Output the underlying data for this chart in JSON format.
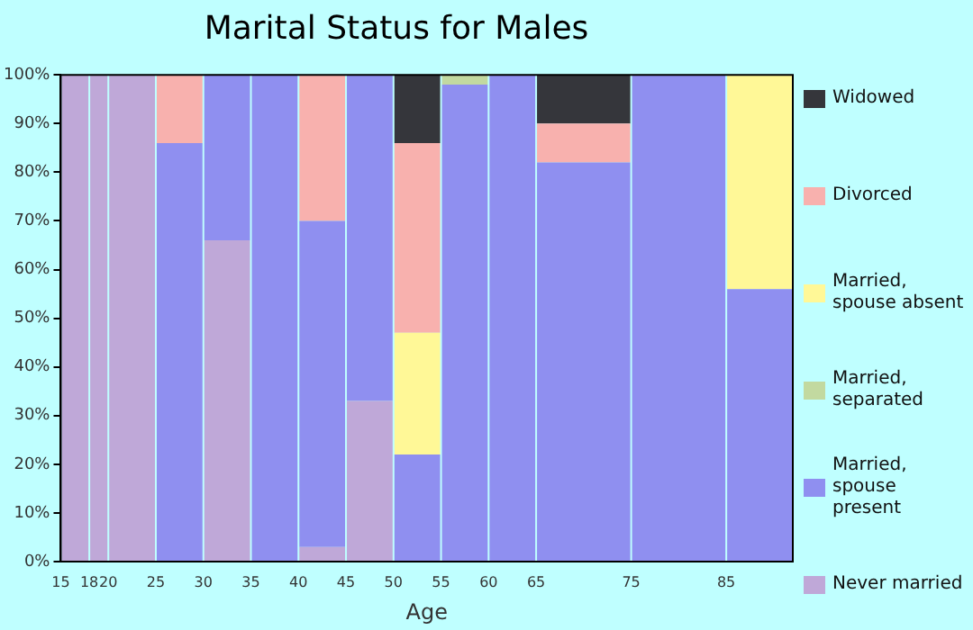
{
  "chart_data": {
    "type": "bar",
    "title": "Marital Status for Males",
    "xlabel": "Age",
    "stacked": true,
    "x": [
      16.5,
      19,
      22.5,
      27.5,
      32.5,
      37.5,
      42.5,
      47.5,
      52.5,
      57.5,
      62.5,
      70,
      80,
      88.5
    ],
    "xlim": [
      15,
      92
    ],
    "xticks": [
      15,
      18,
      20,
      25,
      30,
      35,
      40,
      45,
      50,
      55,
      60,
      65,
      75,
      85
    ],
    "ylim": [
      0,
      100
    ],
    "yticks": [
      {
        "value": 0,
        "label": "0%"
      },
      {
        "value": 10,
        "label": "10%"
      },
      {
        "value": 20,
        "label": "20%"
      },
      {
        "value": 30,
        "label": "30%"
      },
      {
        "value": 40,
        "label": "40%"
      },
      {
        "value": 50,
        "label": "50%"
      },
      {
        "value": 60,
        "label": "60%"
      },
      {
        "value": 70,
        "label": "70%"
      },
      {
        "value": 80,
        "label": "80%"
      },
      {
        "value": 90,
        "label": "90%"
      },
      {
        "value": 100,
        "label": "100%"
      }
    ],
    "grid": false,
    "legend": "right",
    "series": [
      {
        "name": "Never married",
        "color": "#bfa8d8",
        "values": [
          100,
          100,
          100,
          0,
          66,
          0,
          3,
          33,
          0,
          0,
          0,
          0,
          0,
          0
        ]
      },
      {
        "name": "Married, spouse present",
        "color": "#8f8ff0",
        "values": [
          0,
          0,
          0,
          86,
          34,
          100,
          67,
          67,
          22,
          98,
          100,
          82,
          100,
          56
        ]
      },
      {
        "name": "Married, separated",
        "color": "#c2d9a0",
        "values": [
          0,
          0,
          0,
          0,
          0,
          0,
          0,
          0,
          0,
          2,
          0,
          0,
          0,
          0
        ]
      },
      {
        "name": "Married, spouse absent",
        "color": "#fff897",
        "values": [
          0,
          0,
          0,
          0,
          0,
          0,
          0,
          0,
          25,
          0,
          0,
          0,
          0,
          44
        ]
      },
      {
        "name": "Divorced",
        "color": "#f8b1ae",
        "values": [
          0,
          0,
          0,
          14,
          0,
          0,
          30,
          0,
          39,
          0,
          0,
          8,
          0,
          0
        ]
      },
      {
        "name": "Widowed",
        "color": "#35363b",
        "values": [
          0,
          0,
          0,
          0,
          0,
          0,
          0,
          0,
          14,
          0,
          0,
          10,
          0,
          0
        ]
      }
    ]
  }
}
